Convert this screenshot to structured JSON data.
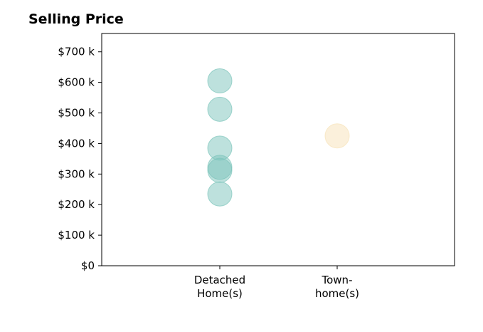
{
  "chart_data": {
    "type": "scatter",
    "title": "Selling Price",
    "xlabel": "",
    "ylabel": "",
    "categories": [
      [
        "Detached",
        "Home(s)"
      ],
      [
        "Town-",
        "home(s)"
      ]
    ],
    "ylim": [
      0,
      760000
    ],
    "yticks": [
      {
        "value": 0,
        "label": "$0"
      },
      {
        "value": 100000,
        "label": "$100 k"
      },
      {
        "value": 200000,
        "label": "$200 k"
      },
      {
        "value": 300000,
        "label": "$300 k"
      },
      {
        "value": 400000,
        "label": "$400 k"
      },
      {
        "value": 500000,
        "label": "$500 k"
      },
      {
        "value": 600000,
        "label": "$600 k"
      },
      {
        "value": 700000,
        "label": "$700 k"
      }
    ],
    "grid": false,
    "legend": "none",
    "series": [
      {
        "category_index": 0,
        "color": "#7cc4bb",
        "values": [
          605000,
          512000,
          385000,
          322000,
          312000,
          235000
        ]
      },
      {
        "category_index": 1,
        "color": "#f7e2b8",
        "values": [
          425000
        ]
      }
    ]
  }
}
